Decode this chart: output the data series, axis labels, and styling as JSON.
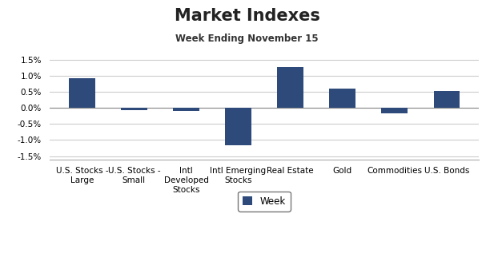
{
  "title": "Market Indexes",
  "subtitle": "Week Ending November 15",
  "categories": [
    "U.S. Stocks -\nLarge",
    "U.S. Stocks -\nSmall",
    "Intl\nDeveloped\nStocks",
    "Intl Emerging\nStocks",
    "Real Estate",
    "Gold",
    "Commodities",
    "U.S. Bonds"
  ],
  "values": [
    0.0093,
    -0.0008,
    -0.001,
    -0.0115,
    0.0128,
    0.006,
    -0.0018,
    0.0053
  ],
  "bar_color": "#2E4A7A",
  "ylim": [
    -0.016,
    0.016
  ],
  "yticks": [
    -0.015,
    -0.01,
    -0.005,
    0.0,
    0.005,
    0.01,
    0.015
  ],
  "legend_label": "Week",
  "background_color": "#FFFFFF",
  "grid_color": "#CCCCCC",
  "title_fontsize": 15,
  "subtitle_fontsize": 8.5,
  "tick_fontsize": 7.5,
  "bar_width": 0.5
}
